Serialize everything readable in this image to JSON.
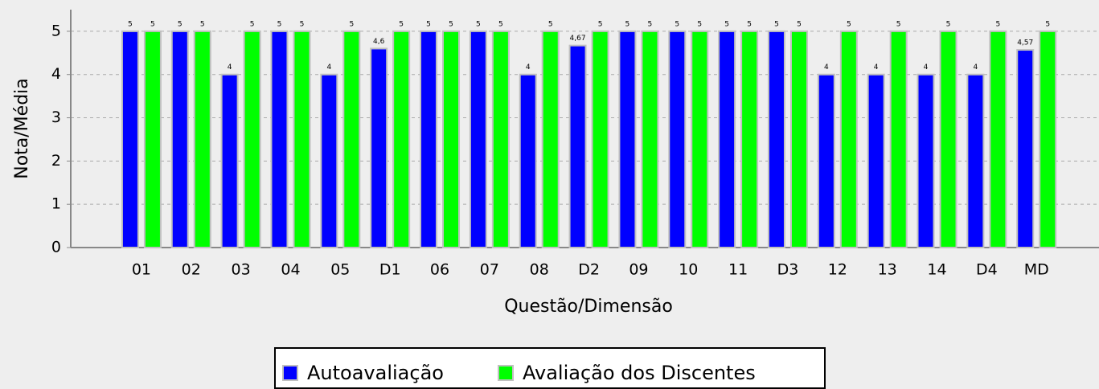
{
  "chart_data": {
    "type": "bar",
    "x_label": "Questão/Dimensão",
    "y_label": "Nota/Média",
    "categories": [
      "01",
      "02",
      "03",
      "04",
      "05",
      "D1",
      "06",
      "07",
      "08",
      "D2",
      "09",
      "10",
      "11",
      "D3",
      "12",
      "13",
      "14",
      "D4",
      "MD"
    ],
    "series": [
      {
        "name": "Autoavaliação",
        "color": "#0000ff",
        "values": [
          5,
          5,
          4,
          5,
          4,
          4.6,
          5,
          5,
          4,
          4.67,
          5,
          5,
          5,
          5,
          4,
          4,
          4,
          4,
          4.57
        ],
        "value_labels": [
          "5",
          "5",
          "4",
          "5",
          "4",
          "4,6",
          "5",
          "5",
          "4",
          "4,67",
          "5",
          "5",
          "5",
          "5",
          "4",
          "4",
          "4",
          "4",
          "4,57"
        ]
      },
      {
        "name": "Avaliação dos Discentes",
        "color": "#00ff00",
        "values": [
          5,
          5,
          5,
          5,
          5,
          5,
          5,
          5,
          5,
          5,
          5,
          5,
          5,
          5,
          5,
          5,
          5,
          5,
          5
        ]
      }
    ],
    "ylim": [
      0,
      5.5
    ],
    "yticks": [
      0,
      1,
      2,
      3,
      4,
      5
    ],
    "grid": true
  }
}
